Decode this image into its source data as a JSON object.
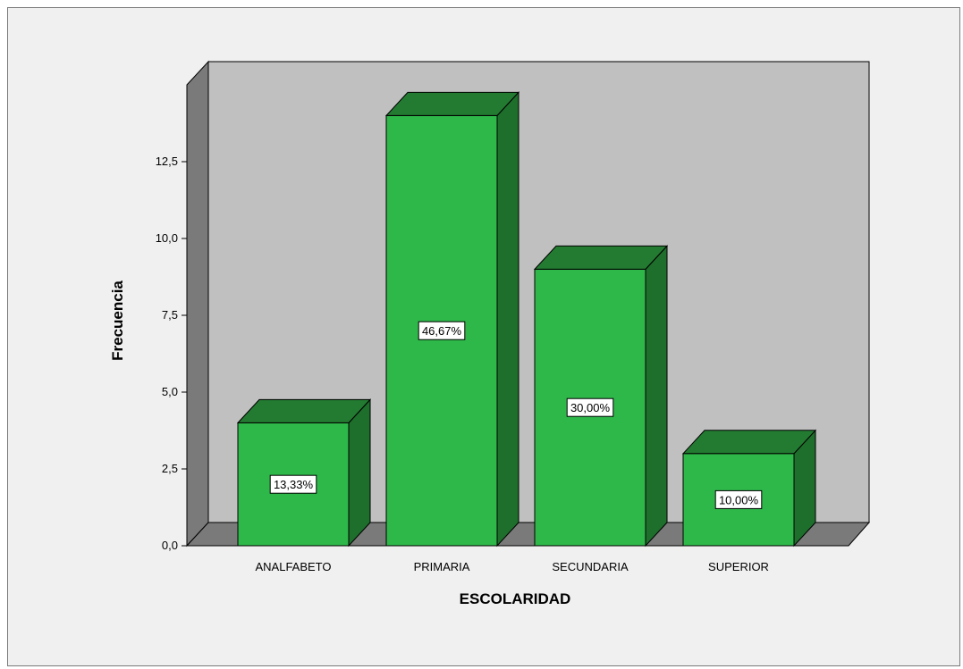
{
  "chart_data": {
    "type": "bar",
    "style": "3d",
    "title": "",
    "xlabel": "ESCOLARIDAD",
    "ylabel": "Frecuencia",
    "categories": [
      "ANALFABETO",
      "PRIMARIA",
      "SECUNDARIA",
      "SUPERIOR"
    ],
    "values": [
      4,
      14,
      9,
      3
    ],
    "data_labels": [
      "13,33%",
      "46,67%",
      "30,00%",
      "10,00%"
    ],
    "ylim": [
      0,
      15
    ],
    "yticks": [
      "0,0",
      "2,5",
      "5,0",
      "7,5",
      "10,0",
      "12,5"
    ],
    "ytick_values": [
      0,
      2.5,
      5,
      7.5,
      10,
      12.5
    ],
    "grid": false,
    "legend": "none",
    "colors": {
      "bar_front": "#2eb84a",
      "bar_side": "#1e6e2c",
      "bar_top": "#237a31",
      "wall_back": "#c0c0c0",
      "wall_side": "#7a7a7a",
      "floor": "#7a7a7a",
      "frame_bg": "#f0f0f0"
    }
  }
}
